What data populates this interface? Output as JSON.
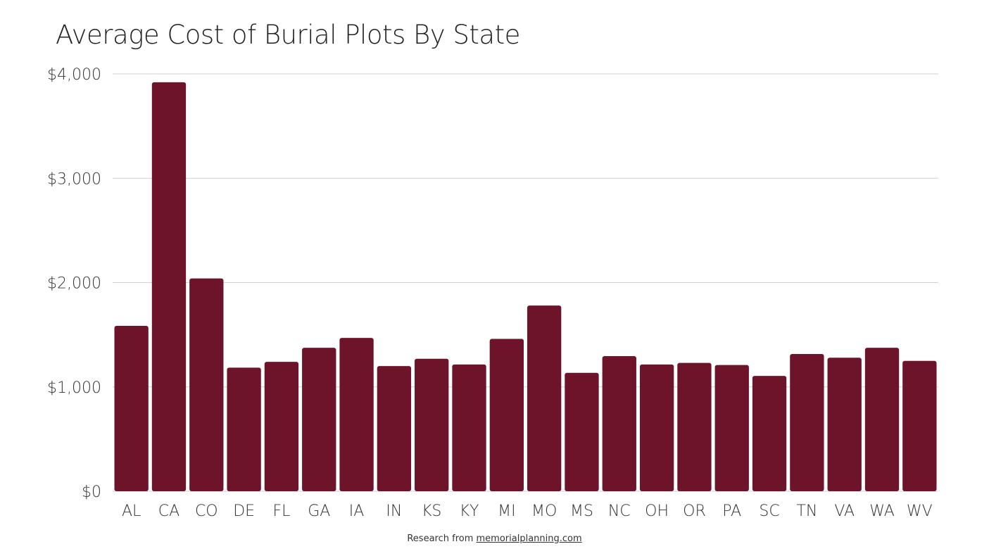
{
  "chart_data": {
    "type": "bar",
    "title": "Average Cost of Burial Plots By State",
    "xlabel": "",
    "ylabel": "",
    "categories": [
      "AL",
      "CA",
      "CO",
      "DE",
      "FL",
      "GA",
      "IA",
      "IN",
      "KS",
      "KY",
      "MI",
      "MO",
      "MS",
      "NC",
      "OH",
      "OR",
      "PA",
      "SC",
      "TN",
      "VA",
      "WA",
      "WV"
    ],
    "values": [
      1585,
      3920,
      2040,
      1185,
      1240,
      1375,
      1470,
      1200,
      1270,
      1215,
      1460,
      1780,
      1135,
      1295,
      1215,
      1230,
      1210,
      1105,
      1315,
      1280,
      1375,
      1250
    ],
    "ylim": [
      0,
      4000
    ],
    "yticks": [
      0,
      1000,
      2000,
      3000,
      4000
    ],
    "ytick_labels": [
      "$0",
      "$1,000",
      "$2,000",
      "$3,000",
      "$4,000"
    ],
    "grid": true,
    "bar_color": "#6d142b"
  },
  "footer": {
    "prefix": "Research from ",
    "link": "memorialplanning.com"
  }
}
